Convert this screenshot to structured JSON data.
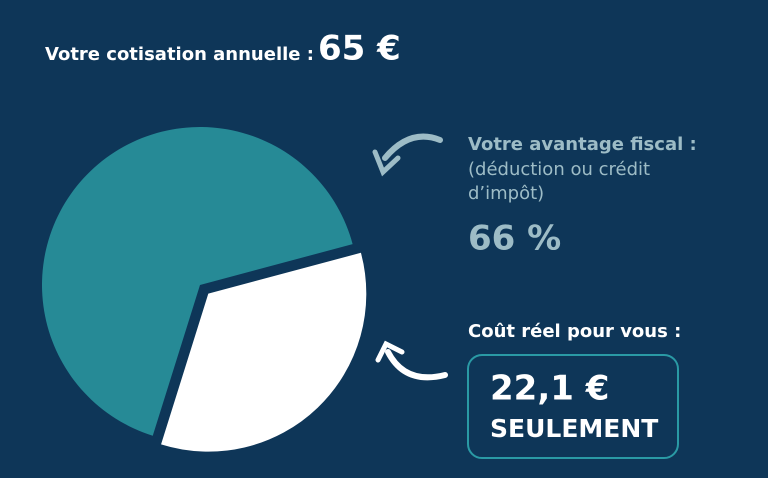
{
  "chart_data": {
    "type": "pie",
    "title": "Votre cotisation annuelle :",
    "title_value": "65 €",
    "values": [
      66,
      34
    ],
    "value_labels": [
      "66 %",
      null
    ],
    "colors": [
      "#268a96",
      "#ffffff"
    ],
    "annotations": {
      "advantage_title": "Votre avantage fiscal :",
      "advantage_desc": [
        "(déduction ou crédit",
        "d’impôt)"
      ],
      "cost_title": "Coût réel pour vous :",
      "cost_value": "22,1 €",
      "cost_note": "SEULEMENT"
    }
  }
}
